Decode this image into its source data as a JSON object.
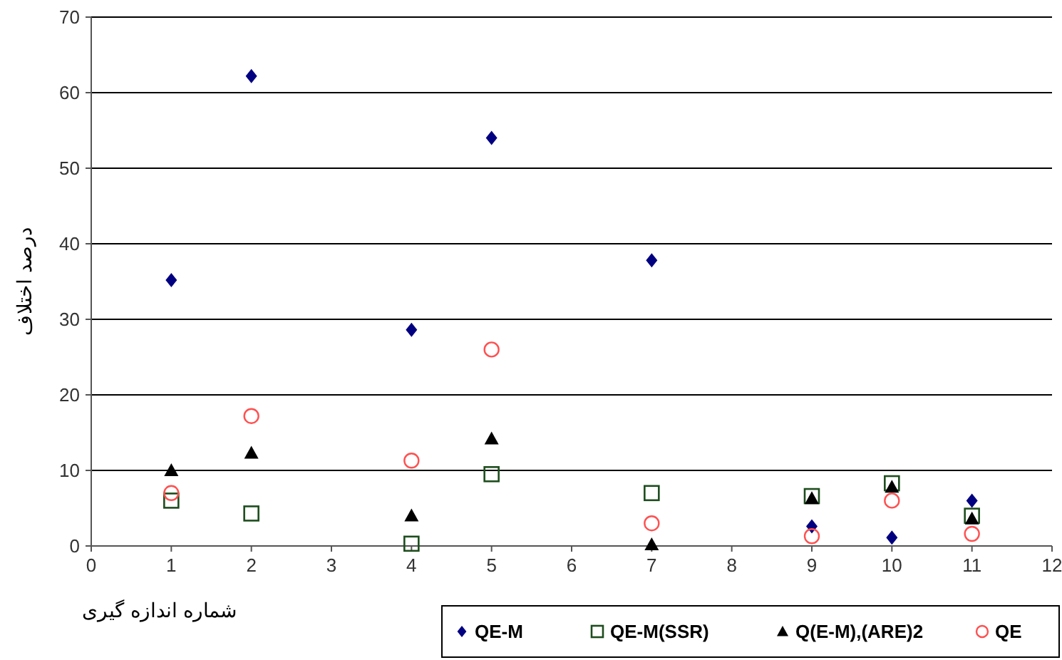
{
  "chart_data": {
    "type": "scatter",
    "xlabel": "شماره اندازه گیری",
    "ylabel": "درصد اختلاف",
    "x": [
      1,
      2,
      4,
      5,
      7,
      9,
      10,
      11
    ],
    "xlim": [
      0,
      12
    ],
    "xticks": [
      0,
      1,
      2,
      3,
      4,
      5,
      6,
      7,
      8,
      9,
      10,
      11,
      12
    ],
    "ylim": [
      0,
      70
    ],
    "yticks": [
      0,
      10,
      20,
      30,
      40,
      50,
      60,
      70
    ],
    "grid": "y",
    "legend": "bottom right",
    "series": [
      {
        "name": "QE-M",
        "color": "#000080",
        "marker": "diamond",
        "values": [
          35.2,
          62.2,
          28.6,
          54,
          37.8,
          2.6,
          1.1,
          6
        ]
      },
      {
        "name": "QE-M(SSR)",
        "color": "#1e4d1e",
        "marker": "square",
        "values": [
          6,
          4.3,
          0.3,
          9.5,
          7,
          6.6,
          8.3,
          4
        ]
      },
      {
        "name": "Q(E-M),(ARE)2",
        "color": "#000000",
        "marker": "triangle",
        "values": [
          10,
          12.3,
          4,
          14.2,
          0.2,
          6.3,
          7.8,
          3.6
        ]
      },
      {
        "name": "QE",
        "color": "#ff5050",
        "marker": "circle",
        "values": [
          7,
          17.2,
          11.3,
          26,
          3,
          1.3,
          6,
          1.6
        ]
      }
    ]
  }
}
